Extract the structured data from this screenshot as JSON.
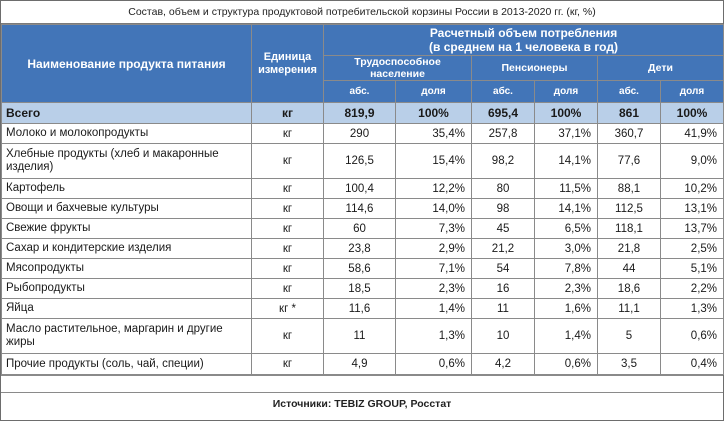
{
  "caption": "Состав, объем и структура продуктовой потребительской корзины России в 2013-2020 гг. (кг, %)",
  "header": {
    "name_col": "Наименование продукта питания",
    "unit_col": "Единица измерения",
    "volume_line1": "Расчетный объем потребления",
    "volume_line2": "(в среднем на 1 человека в год)",
    "groups": [
      "Трудоспособное население",
      "Пенсионеры",
      "Дети"
    ],
    "abs": "абс.",
    "share": "доля"
  },
  "total": {
    "name": "Всего",
    "unit": "кг",
    "values": [
      "819,9",
      "100%",
      "695,4",
      "100%",
      "861",
      "100%"
    ]
  },
  "rows": [
    {
      "name": "Молоко и молокопродукты",
      "unit": "кг",
      "values": [
        "290",
        "35,4%",
        "257,8",
        "37,1%",
        "360,7",
        "41,9%"
      ]
    },
    {
      "name": "Хлебные продукты (хлеб и макаронные изделия)",
      "unit": "кг",
      "values": [
        "126,5",
        "15,4%",
        "98,2",
        "14,1%",
        "77,6",
        "9,0%"
      ]
    },
    {
      "name": "Картофель",
      "unit": "кг",
      "values": [
        "100,4",
        "12,2%",
        "80",
        "11,5%",
        "88,1",
        "10,2%"
      ]
    },
    {
      "name": "Овощи и бахчевые культуры",
      "unit": "кг",
      "values": [
        "114,6",
        "14,0%",
        "98",
        "14,1%",
        "112,5",
        "13,1%"
      ]
    },
    {
      "name": "Свежие фрукты",
      "unit": "кг",
      "values": [
        "60",
        "7,3%",
        "45",
        "6,5%",
        "118,1",
        "13,7%"
      ]
    },
    {
      "name": "Сахар и кондитерские изделия",
      "unit": "кг",
      "values": [
        "23,8",
        "2,9%",
        "21,2",
        "3,0%",
        "21,8",
        "2,5%"
      ]
    },
    {
      "name": "Мясопродукты",
      "unit": "кг",
      "values": [
        "58,6",
        "7,1%",
        "54",
        "7,8%",
        "44",
        "5,1%"
      ]
    },
    {
      "name": "Рыбопродукты",
      "unit": "кг",
      "values": [
        "18,5",
        "2,3%",
        "16",
        "2,3%",
        "18,6",
        "2,2%"
      ]
    },
    {
      "name": "Яйца",
      "unit": "кг *",
      "values": [
        "11,6",
        "1,4%",
        "11",
        "1,6%",
        "11,1",
        "1,3%"
      ]
    },
    {
      "name": "Масло растительное, маргарин и другие жиры",
      "unit": "кг",
      "values": [
        "11",
        "1,3%",
        "10",
        "1,4%",
        "5",
        "0,6%"
      ]
    },
    {
      "name": "Прочие продукты (соль, чай, специи)",
      "unit": "кг",
      "values": [
        "4,9",
        "0,6%",
        "4,2",
        "0,6%",
        "3,5",
        "0,4%"
      ]
    }
  ],
  "source": "Источники: TEBIZ GROUP, Росстат"
}
